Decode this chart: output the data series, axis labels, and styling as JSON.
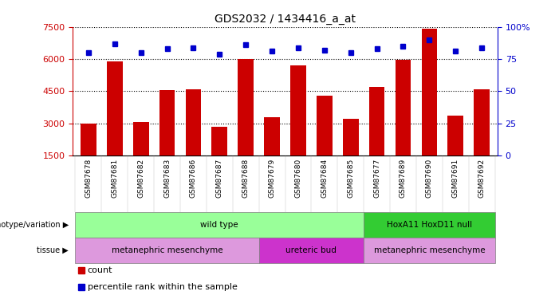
{
  "title": "GDS2032 / 1434416_a_at",
  "samples": [
    "GSM87678",
    "GSM87681",
    "GSM87682",
    "GSM87683",
    "GSM87686",
    "GSM87687",
    "GSM87688",
    "GSM87679",
    "GSM87680",
    "GSM87684",
    "GSM87685",
    "GSM87677",
    "GSM87689",
    "GSM87690",
    "GSM87691",
    "GSM87692"
  ],
  "counts": [
    3000,
    5900,
    3050,
    4550,
    4600,
    2850,
    6000,
    3300,
    5700,
    4300,
    3200,
    4700,
    5950,
    7400,
    3350,
    4600
  ],
  "percentiles": [
    80,
    87,
    80,
    83,
    84,
    79,
    86,
    81,
    84,
    82,
    80,
    83,
    85,
    90,
    81,
    84
  ],
  "ylim_left": [
    1500,
    7500
  ],
  "ylim_right": [
    0,
    100
  ],
  "yticks_left": [
    1500,
    3000,
    4500,
    6000,
    7500
  ],
  "yticks_right": [
    0,
    25,
    50,
    75,
    100
  ],
  "bar_color": "#cc0000",
  "dot_color": "#0000cc",
  "background_color": "#ffffff",
  "genotype_groups": [
    {
      "label": "wild type",
      "start": 0,
      "end": 11,
      "color": "#99ff99"
    },
    {
      "label": "HoxA11 HoxD11 null",
      "start": 11,
      "end": 16,
      "color": "#33cc33"
    }
  ],
  "tissue_groups": [
    {
      "label": "metanephric mesenchyme",
      "start": 0,
      "end": 7,
      "color": "#dd99dd"
    },
    {
      "label": "ureteric bud",
      "start": 7,
      "end": 11,
      "color": "#cc33cc"
    },
    {
      "label": "metanephric mesenchyme",
      "start": 11,
      "end": 16,
      "color": "#dd99dd"
    }
  ],
  "legend_count_color": "#cc0000",
  "legend_percentile_color": "#0000cc"
}
